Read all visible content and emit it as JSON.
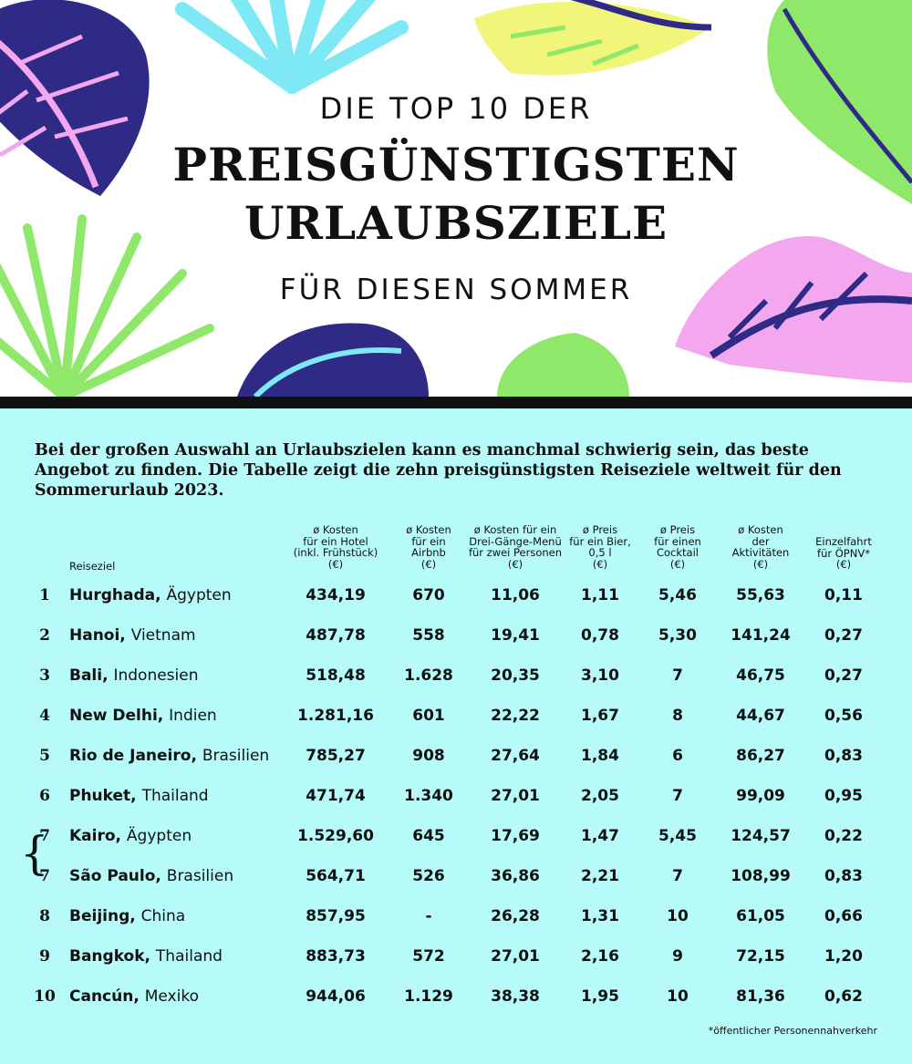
{
  "header": {
    "title_pre": "DIE TOP 10 DER",
    "title_main_line1": "PREISGÜNSTIGSTEN",
    "title_main_line2": "URLAUBSZIELE",
    "title_post": "FÜR DIESEN SOMMER"
  },
  "intro": "Bei der großen Auswahl an Urlaubszielen kann es manchmal schwierig sein, das beste Angebot zu finden. Die Tabelle zeigt die zehn preisgünstigsten Reiseziele weltweit für den Sommerurlaub 2023.",
  "colors": {
    "background_header": "#ffffff",
    "background_table": "#b6fafa",
    "text": "#111111",
    "leaf_navy": "#2e2a86",
    "leaf_pink": "#f2a7ee",
    "leaf_green": "#8fe86a",
    "leaf_cyan": "#7ee8f5",
    "leaf_yellow": "#f1f57a"
  },
  "chart_data": {
    "type": "table",
    "columns": [
      "Reiseziel",
      "ø Kosten für ein Hotel (inkl. Frühstück) (€)",
      "ø Kosten für ein Airbnb (€)",
      "ø Kosten für ein Drei-Gänge-Menü für zwei Personen (€)",
      "ø Preis für ein Bier, 0,5 l (€)",
      "ø Preis für einen Cocktail (€)",
      "ø Kosten der Aktivitäten (€)",
      "Einzelfahrt für ÖPNV* (€)"
    ],
    "header_lines": {
      "reiseziel": "Reiseziel",
      "hotel": [
        "ø Kosten",
        "für ein Hotel",
        "(inkl. Frühstück)",
        "(€)"
      ],
      "airbnb": [
        "ø Kosten",
        "für ein",
        "Airbnb",
        "(€)"
      ],
      "menu": [
        "ø Kosten für ein",
        "Drei-Gänge-Menü",
        "für zwei Personen",
        "(€)"
      ],
      "beer": [
        "ø Preis",
        "für ein Bier,",
        "0,5 l",
        "(€)"
      ],
      "cocktail": [
        "ø Preis",
        "für einen",
        "Cocktail",
        "(€)"
      ],
      "activities": [
        "ø Kosten",
        "der",
        "Aktivitäten",
        "(€)"
      ],
      "transit": [
        "Einzelfahrt",
        "für ÖPNV*",
        "(€)"
      ]
    },
    "rows": [
      {
        "rank": "1",
        "city": "Hurghada,",
        "country": "Ägypten",
        "hotel": "434,19",
        "airbnb": "670",
        "menu": "11,06",
        "beer": "1,11",
        "cocktail": "5,46",
        "activities": "55,63",
        "transit": "0,11"
      },
      {
        "rank": "2",
        "city": "Hanoi,",
        "country": "Vietnam",
        "hotel": "487,78",
        "airbnb": "558",
        "menu": "19,41",
        "beer": "0,78",
        "cocktail": "5,30",
        "activities": "141,24",
        "transit": "0,27"
      },
      {
        "rank": "3",
        "city": "Bali,",
        "country": "Indonesien",
        "hotel": "518,48",
        "airbnb": "1.628",
        "menu": "20,35",
        "beer": "3,10",
        "cocktail": "7",
        "activities": "46,75",
        "transit": "0,27"
      },
      {
        "rank": "4",
        "city": "New Delhi,",
        "country": "Indien",
        "hotel": "1.281,16",
        "airbnb": "601",
        "menu": "22,22",
        "beer": "1,67",
        "cocktail": "8",
        "activities": "44,67",
        "transit": "0,56"
      },
      {
        "rank": "5",
        "city": "Rio de Janeiro,",
        "country": "Brasilien",
        "hotel": "785,27",
        "airbnb": "908",
        "menu": "27,64",
        "beer": "1,84",
        "cocktail": "6",
        "activities": "86,27",
        "transit": "0,83"
      },
      {
        "rank": "6",
        "city": "Phuket,",
        "country": "Thailand",
        "hotel": "471,74",
        "airbnb": "1.340",
        "menu": "27,01",
        "beer": "2,05",
        "cocktail": "7",
        "activities": "99,09",
        "transit": "0,95"
      },
      {
        "rank": "7",
        "city": "Kairo,",
        "country": "Ägypten",
        "hotel": "1.529,60",
        "airbnb": "645",
        "menu": "17,69",
        "beer": "1,47",
        "cocktail": "5,45",
        "activities": "124,57",
        "transit": "0,22"
      },
      {
        "rank": "7",
        "city": "São Paulo,",
        "country": "Brasilien",
        "hotel": "564,71",
        "airbnb": "526",
        "menu": "36,86",
        "beer": "2,21",
        "cocktail": "7",
        "activities": "108,99",
        "transit": "0,83"
      },
      {
        "rank": "8",
        "city": "Beijing,",
        "country": "China",
        "hotel": "857,95",
        "airbnb": "-",
        "menu": "26,28",
        "beer": "1,31",
        "cocktail": "10",
        "activities": "61,05",
        "transit": "0,66"
      },
      {
        "rank": "9",
        "city": "Bangkok,",
        "country": "Thailand",
        "hotel": "883,73",
        "airbnb": "572",
        "menu": "27,01",
        "beer": "2,16",
        "cocktail": "9",
        "activities": "72,15",
        "transit": "1,20"
      },
      {
        "rank": "10",
        "city": "Cancún,",
        "country": "Mexiko",
        "hotel": "944,06",
        "airbnb": "1.129",
        "menu": "38,38",
        "beer": "1,95",
        "cocktail": "10",
        "activities": "81,36",
        "transit": "0,62"
      }
    ],
    "tie_brace": "{",
    "footnote": "*öffentlicher Personennahverkehr"
  }
}
